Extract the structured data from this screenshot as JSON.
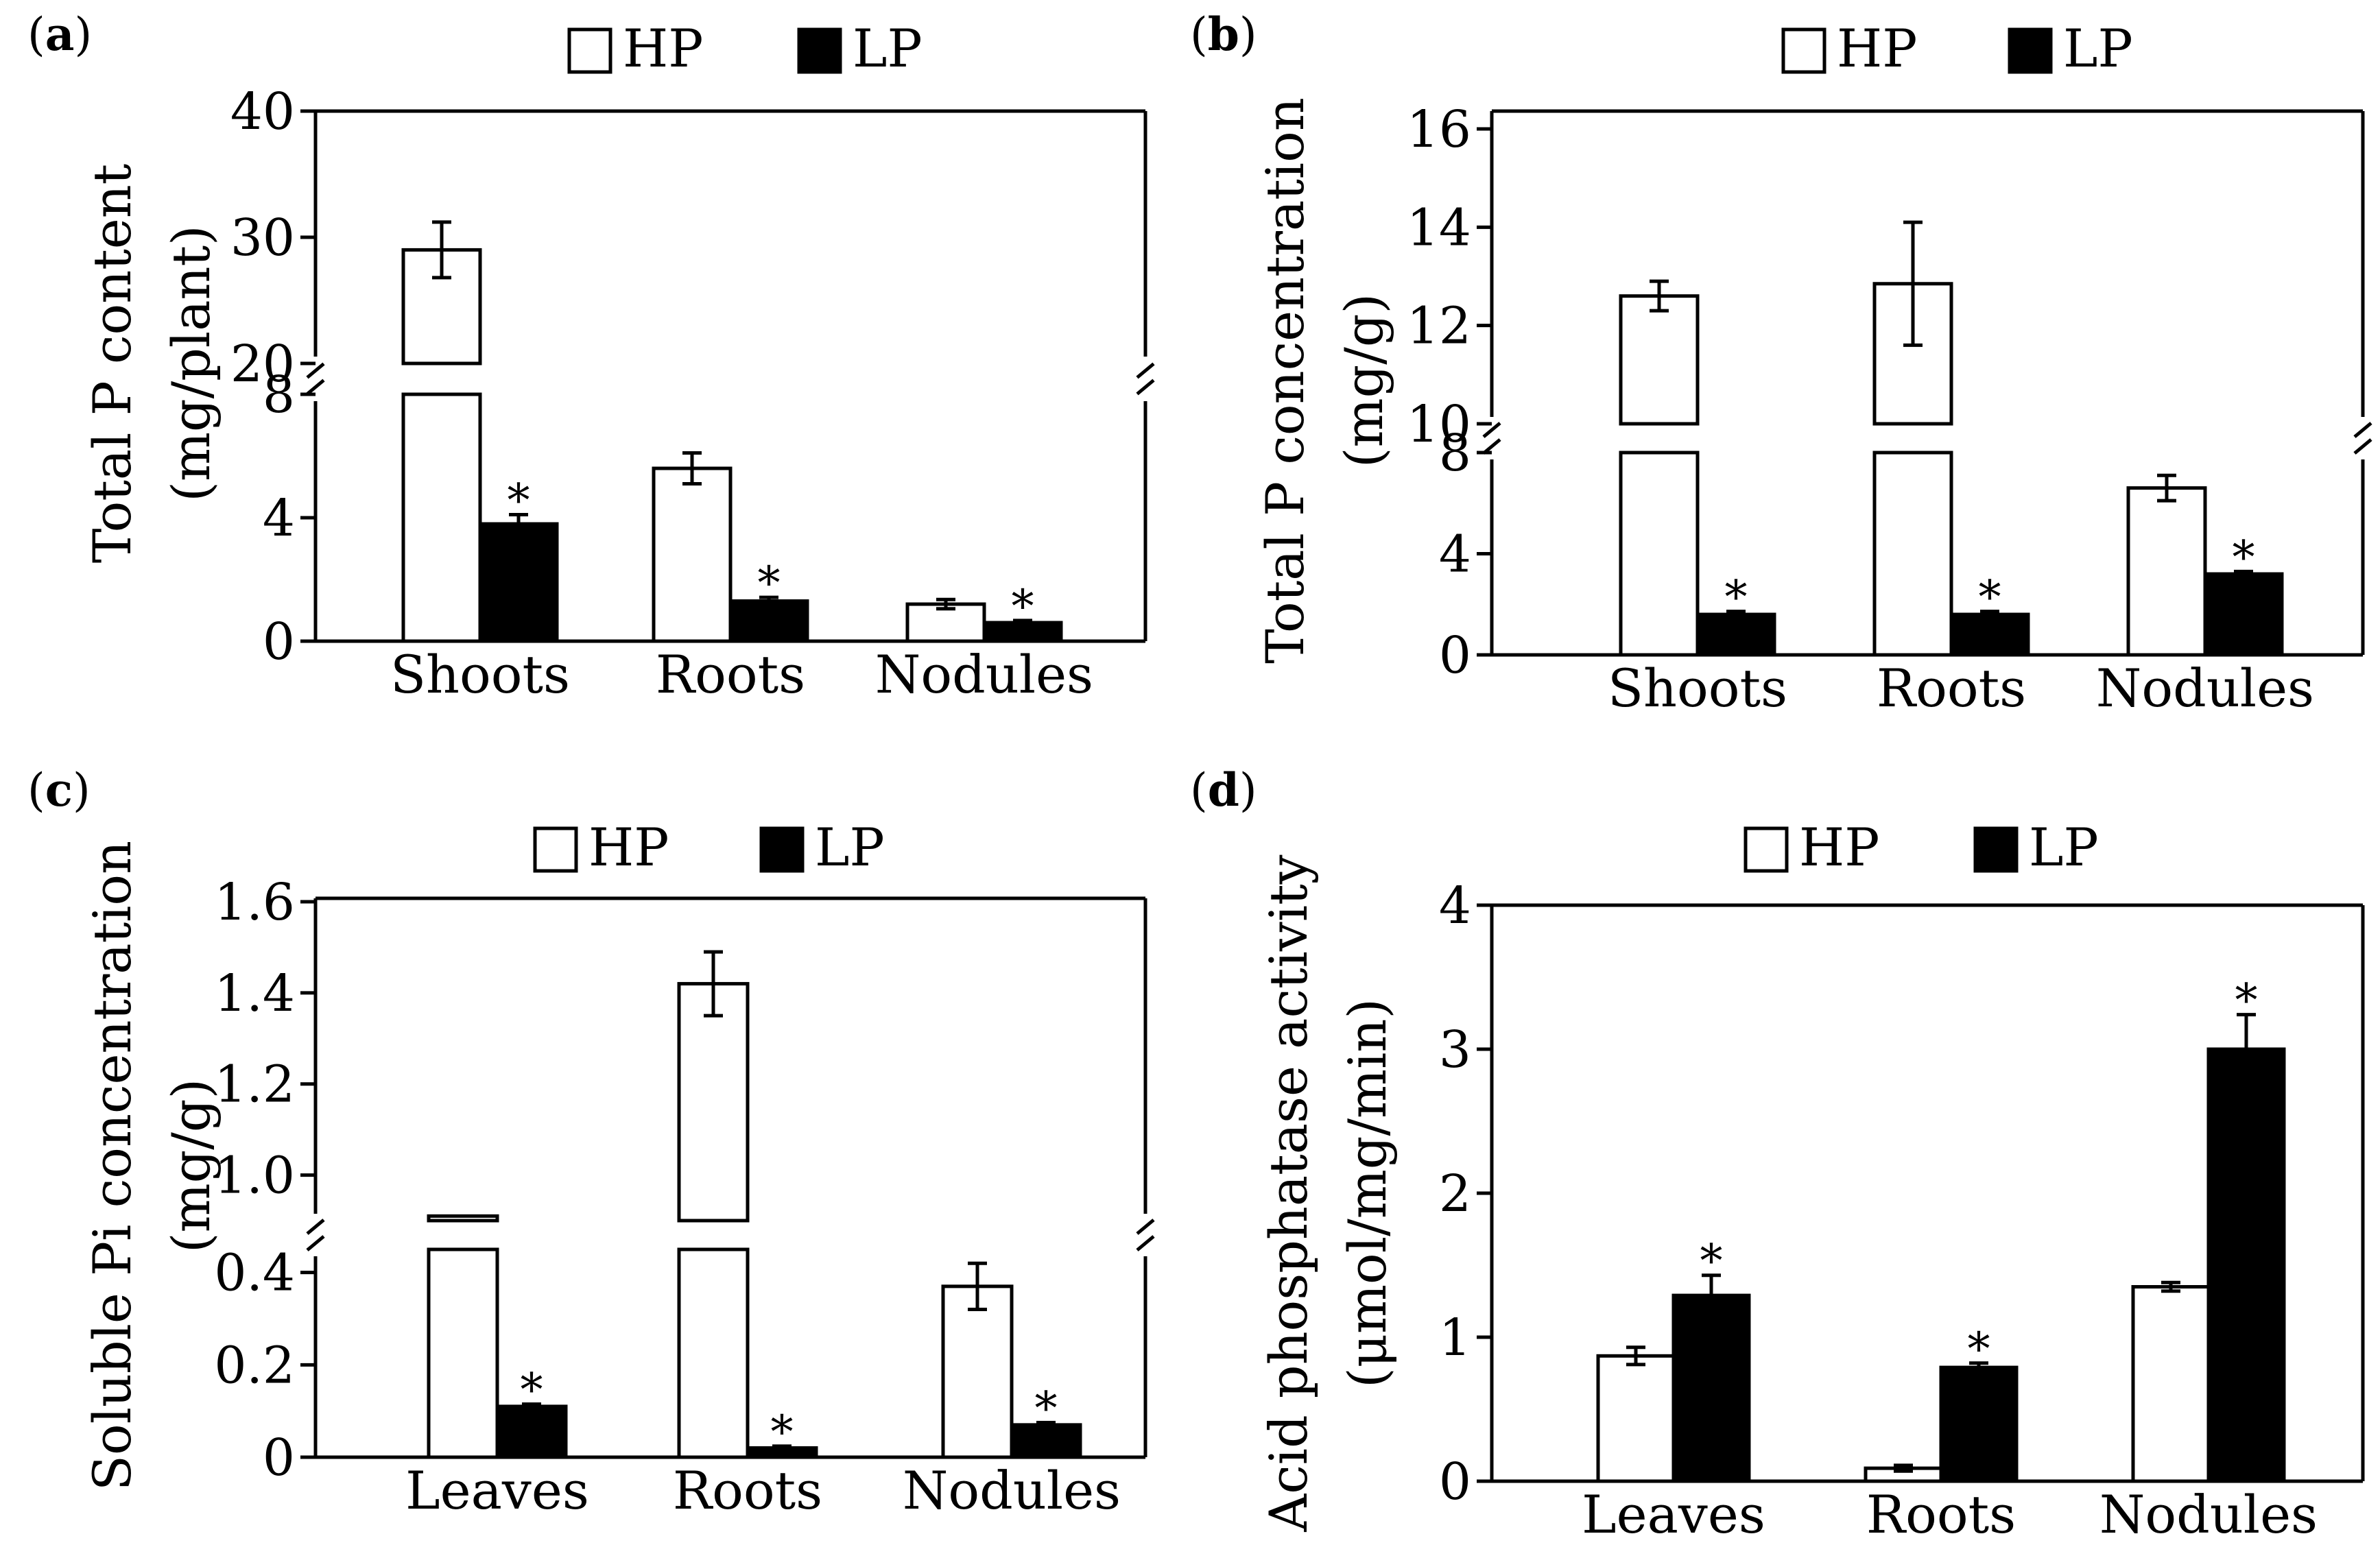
{
  "legend_labels": {
    "hp": "HP",
    "lp": "LP"
  },
  "significance_mark": "*",
  "colors": {
    "hp": "#ffffff",
    "lp": "#000000",
    "stroke": "#000000"
  },
  "chart_data": [
    {
      "panel": "(a)",
      "panel_letter": "a",
      "type": "bar",
      "ylabel": "Total P content",
      "ylabel_unit": "(mg/plant)",
      "categories": [
        "Shoots",
        "Roots",
        "Nodules"
      ],
      "series": [
        {
          "name": "HP",
          "values": [
            29.0,
            5.6,
            1.2
          ],
          "errors": [
            2.2,
            0.5,
            0.15
          ]
        },
        {
          "name": "LP",
          "values": [
            3.8,
            1.3,
            0.6
          ],
          "errors": [
            0.3,
            0.12,
            0.07
          ]
        }
      ],
      "significant": [
        false,
        true
      ],
      "axis_break": {
        "lower": [
          0,
          8
        ],
        "upper": [
          20,
          40
        ]
      },
      "yticks_lower": [
        "0",
        "4",
        "8"
      ],
      "yticks_upper": [
        "20",
        "30",
        "40"
      ],
      "legend": "top-center"
    },
    {
      "panel": "(b)",
      "panel_letter": "b",
      "type": "bar",
      "ylabel": "Total P concentration",
      "ylabel_unit": "(mg/g)",
      "categories": [
        "Shoots",
        "Roots",
        "Nodules"
      ],
      "series": [
        {
          "name": "HP",
          "values": [
            12.6,
            12.85,
            6.6
          ],
          "errors": [
            0.3,
            1.25,
            0.5
          ]
        },
        {
          "name": "LP",
          "values": [
            1.6,
            1.6,
            3.2
          ],
          "errors": [
            0.12,
            0.12,
            0.1
          ]
        }
      ],
      "significant": [
        false,
        true
      ],
      "axis_break": {
        "lower": [
          0,
          8
        ],
        "upper": [
          10,
          16
        ]
      },
      "yticks_lower": [
        "0",
        "4",
        "8"
      ],
      "yticks_upper": [
        "10",
        "12",
        "14",
        "16"
      ],
      "legend": "top-center"
    },
    {
      "panel": "(c)",
      "panel_letter": "c",
      "type": "bar",
      "ylabel": "Soluble Pi concentration",
      "ylabel_unit": "(mg/g)",
      "categories": [
        "Leaves",
        "Roots",
        "Nodules"
      ],
      "series": [
        {
          "name": "HP",
          "values": [
            0.91,
            1.42,
            0.37
          ],
          "errors": [
            0.07,
            0.07,
            0.05
          ]
        },
        {
          "name": "LP",
          "values": [
            0.11,
            0.02,
            0.07
          ],
          "errors": [
            0.005,
            0.004,
            0.005
          ]
        }
      ],
      "significant": [
        false,
        true
      ],
      "axis_break": {
        "lower": [
          0,
          0.45
        ],
        "upper": [
          0.9,
          1.6
        ]
      },
      "yticks_lower": [
        "0",
        "0.2",
        "0.4"
      ],
      "yticks_upper": [
        "1.0",
        "1.2",
        "1.4",
        "1.6"
      ],
      "legend": "top-center"
    },
    {
      "panel": "(d)",
      "panel_letter": "d",
      "type": "bar",
      "ylabel": "Acid phosphatase activity",
      "ylabel_unit": "(μmol/mg/min)",
      "categories": [
        "Leaves",
        "Roots",
        "Nodules"
      ],
      "series": [
        {
          "name": "HP",
          "values": [
            0.87,
            0.09,
            1.35
          ],
          "errors": [
            0.06,
            0.02,
            0.03
          ]
        },
        {
          "name": "LP",
          "values": [
            1.29,
            0.79,
            3.0
          ],
          "errors": [
            0.14,
            0.03,
            0.24
          ]
        }
      ],
      "significant": [
        false,
        true
      ],
      "ylim": [
        0,
        4
      ],
      "yticks": [
        "0",
        "1",
        "2",
        "3",
        "4"
      ],
      "legend": "top-center"
    }
  ]
}
